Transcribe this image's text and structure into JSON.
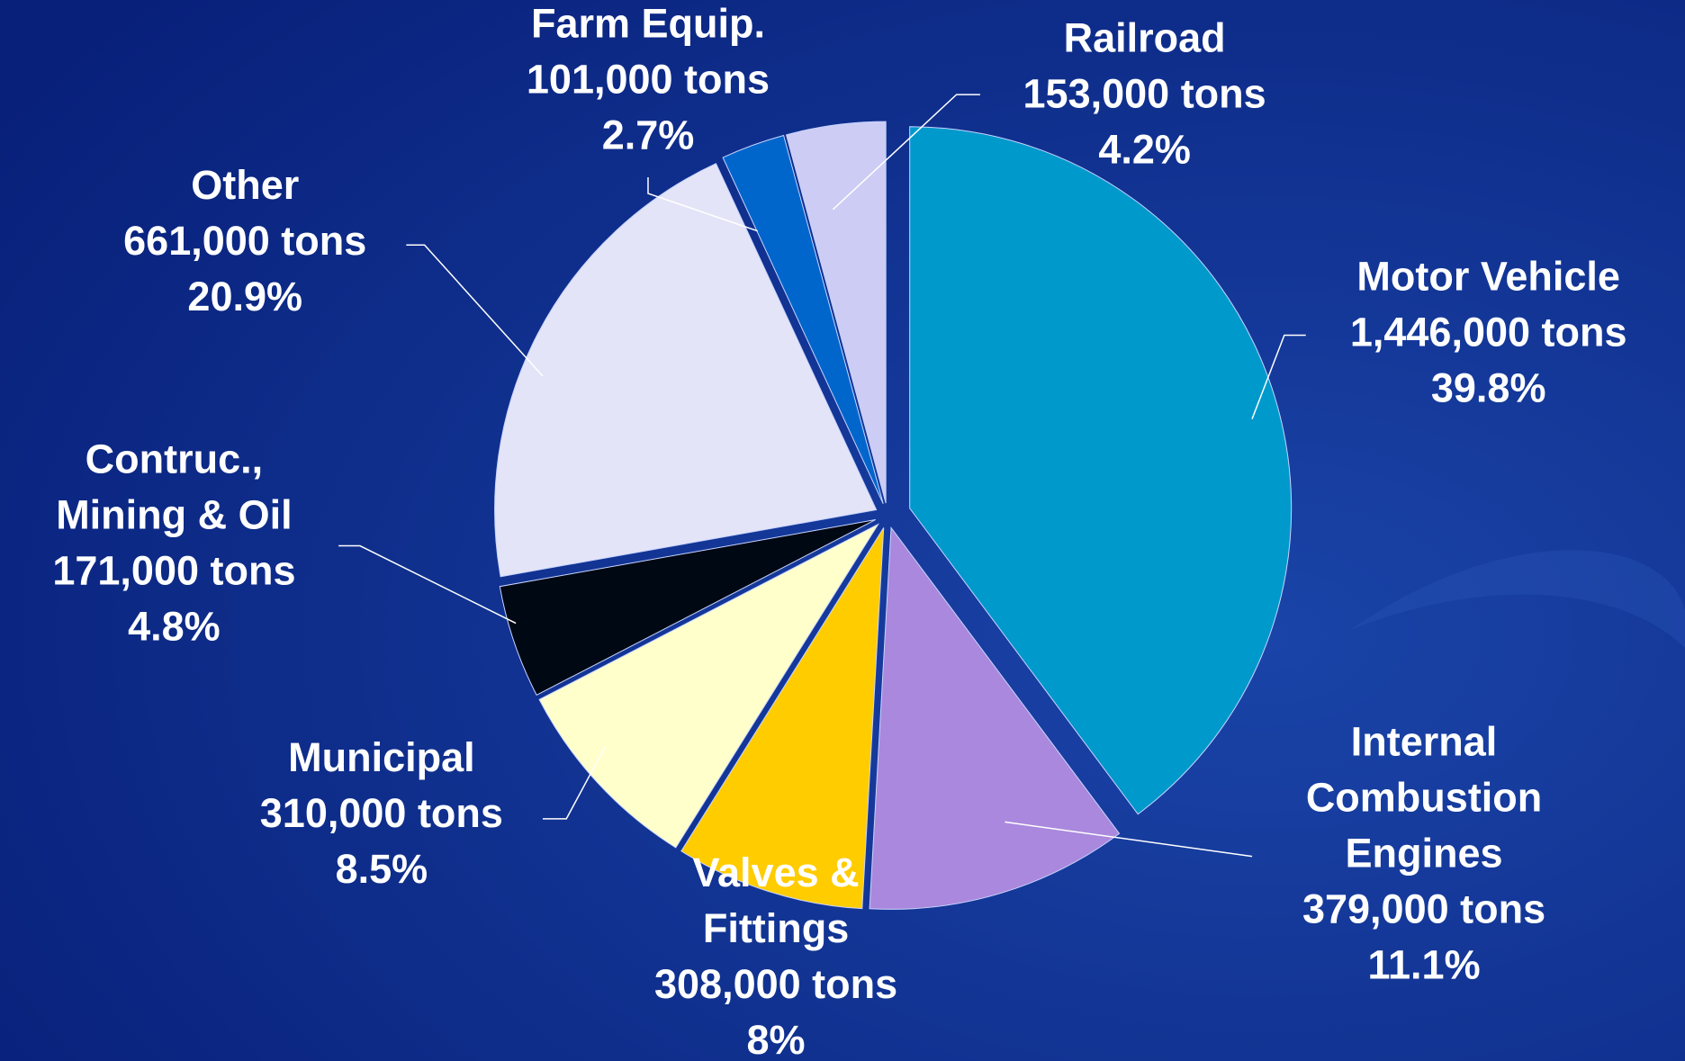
{
  "chart_data": {
    "type": "pie",
    "categories": [
      [
        "Motor Vehicle"
      ],
      [
        "Internal",
        "Combustion",
        "Engines"
      ],
      [
        "Valves &",
        "Fittings"
      ],
      [
        "Municipal"
      ],
      [
        "Contruc.,",
        "Mining & Oil"
      ],
      [
        "Other"
      ],
      [
        "Farm Equip."
      ],
      [
        "Railroad"
      ]
    ],
    "tons_labels": [
      "1,446,000 tons",
      "379,000 tons",
      "308,000 tons",
      "310,000 tons",
      "171,000 tons",
      "661,000 tons",
      "101,000 tons",
      "153,000 tons"
    ],
    "values": [
      39.8,
      11.1,
      8,
      8.5,
      4.8,
      20.9,
      2.7,
      4.2
    ],
    "value_labels": [
      "39.8%",
      "11.1%",
      "8%",
      "8.5%",
      "4.8%",
      "20.9%",
      "2.7%",
      "4.2%"
    ],
    "colors": [
      "#0099cc",
      "#aa88dd",
      "#ffcc00",
      "#ffffcc",
      "#000814",
      "#e4e4f8",
      "#0066cc",
      "#ccccf4"
    ]
  }
}
